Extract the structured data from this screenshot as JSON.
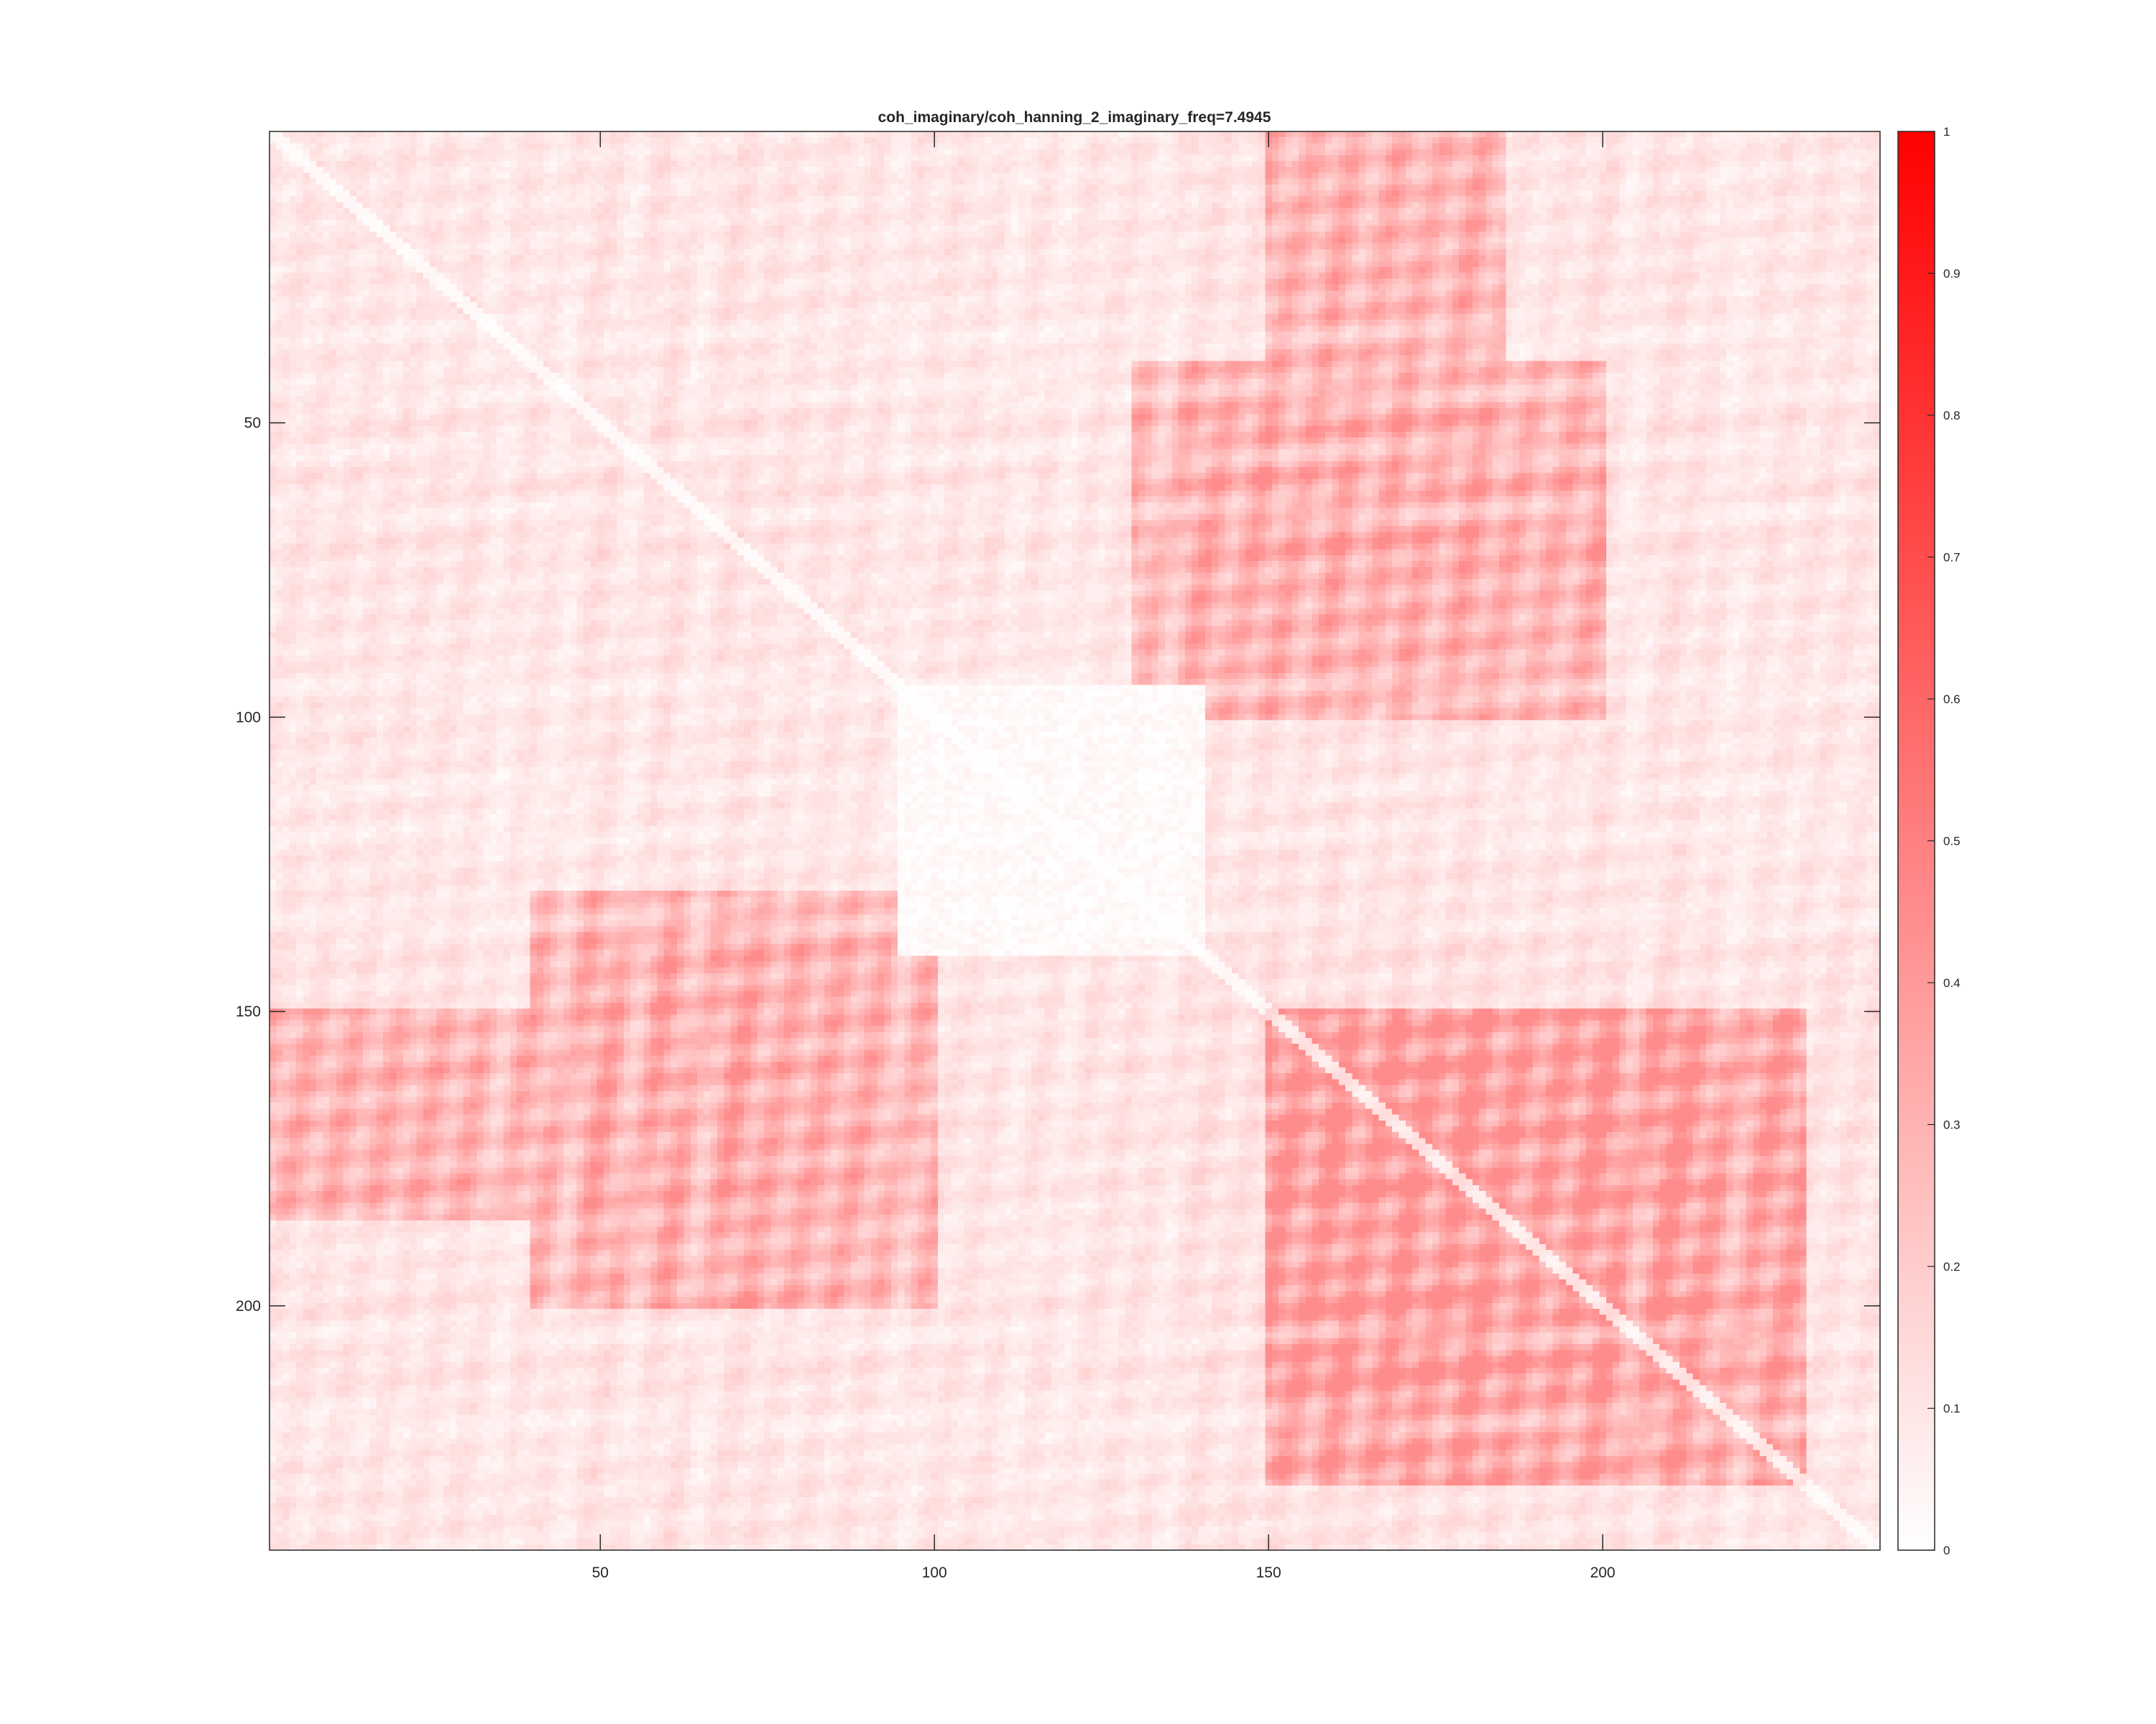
{
  "chart_data": {
    "type": "heatmap",
    "title": "coh_imaginary/coh_hanning_2_imaginary_freq=7.4945",
    "xlabel": "",
    "ylabel": "",
    "matrix_size": 241,
    "xlim": [
      0.5,
      241.5
    ],
    "ylim": [
      0.5,
      241.5
    ],
    "x_ticks": [
      50,
      100,
      150,
      200
    ],
    "y_ticks": [
      50,
      100,
      150,
      200
    ],
    "y_axis_direction": "reverse",
    "clim": [
      0,
      1
    ],
    "colorbar": {
      "position": "right",
      "ticks": [
        0,
        0.1,
        0.2,
        0.3,
        0.4,
        0.5,
        0.6,
        0.7,
        0.8,
        0.9,
        1
      ],
      "tick_labels": [
        "0",
        "0.1",
        "0.2",
        "0.3",
        "0.4",
        "0.5",
        "0.6",
        "0.7",
        "0.8",
        "0.9",
        "1"
      ],
      "colormap": {
        "low": "#ffffff",
        "high": "#ff0000"
      }
    },
    "value_range_observed": [
      0,
      0.45
    ],
    "symmetric": true,
    "structure": {
      "high_blocks": [
        {
          "rows": [
            150,
            230
          ],
          "cols": [
            150,
            230
          ],
          "level": 0.4
        },
        {
          "rows": [
            1,
            60
          ],
          "cols": [
            150,
            185
          ],
          "level": 0.32
        },
        {
          "rows": [
            130,
            200
          ],
          "cols": [
            40,
            100
          ],
          "level": 0.33
        }
      ],
      "low_blocks": [
        {
          "rows": [
            95,
            140
          ],
          "cols": [
            95,
            140
          ],
          "level": 0.03
        }
      ],
      "notable_high_rows": [
        50,
        60,
        70,
        140,
        150,
        160,
        170,
        180,
        200,
        210
      ],
      "notable_low_rows": [
        35,
        45,
        55,
        65,
        95,
        112,
        120,
        135,
        205,
        220
      ]
    }
  },
  "colors": {
    "axis": "#262626",
    "high": "#ff0000",
    "low": "#ffffff",
    "background": "#ffffff"
  }
}
